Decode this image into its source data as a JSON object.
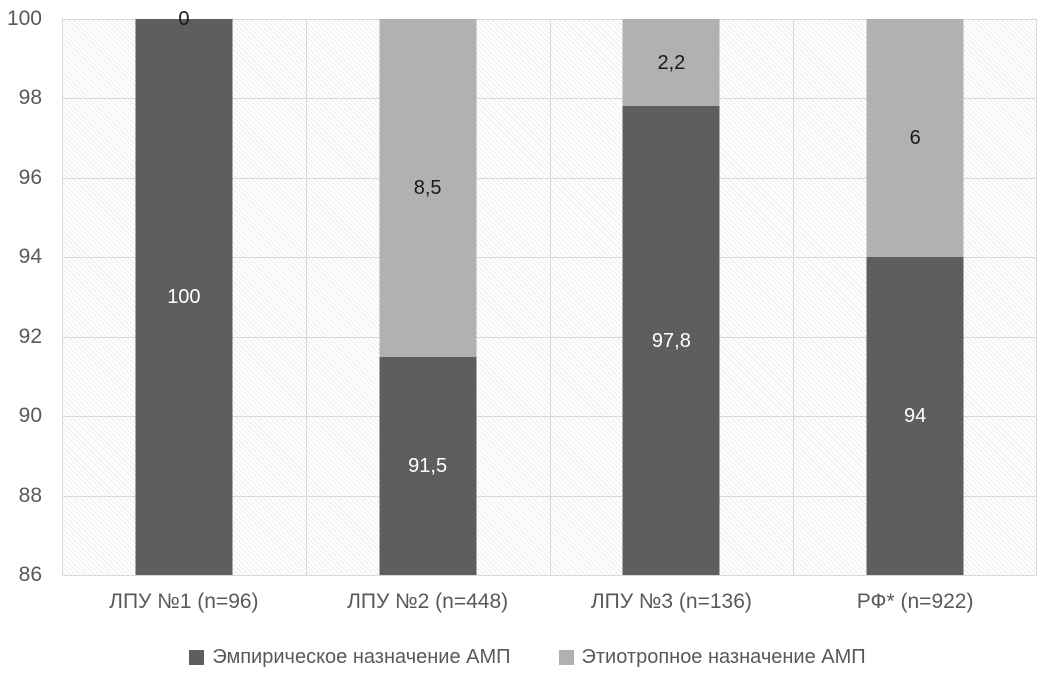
{
  "chart_data": {
    "type": "bar",
    "stacked": true,
    "title": "",
    "xlabel": "",
    "ylabel": "",
    "categories": [
      "ЛПУ №1 (n=96)",
      "ЛПУ №2 (n=448)",
      "ЛПУ №3 (n=136)",
      "РФ* (n=922)"
    ],
    "series": [
      {
        "name": "Эмпирическое назначение АМП",
        "color": "#5e5e5e",
        "label_color": "#ffffff",
        "values": [
          100,
          91.5,
          97.8,
          94
        ],
        "labels": [
          "100",
          "91,5",
          "97,8",
          "94"
        ]
      },
      {
        "name": "Этиотропное назначение АМП",
        "color": "#b1b1b1",
        "label_color": "#1a1a1a",
        "values": [
          0,
          8.5,
          2.2,
          6
        ],
        "labels": [
          "0",
          "8,5",
          "2,2",
          "6"
        ]
      }
    ],
    "ylim": [
      86,
      100
    ],
    "yticks": [
      86,
      88,
      90,
      92,
      94,
      96,
      98,
      100
    ],
    "ytick_labels": [
      "86",
      "88",
      "90",
      "92",
      "94",
      "96",
      "98",
      "100"
    ],
    "grid": true,
    "legend_position": "bottom",
    "plot_background": "diagonal-hatch",
    "colors": {
      "grid": "#d9d9d9",
      "tick_text": "#595959",
      "hatch": "#ececec"
    }
  }
}
